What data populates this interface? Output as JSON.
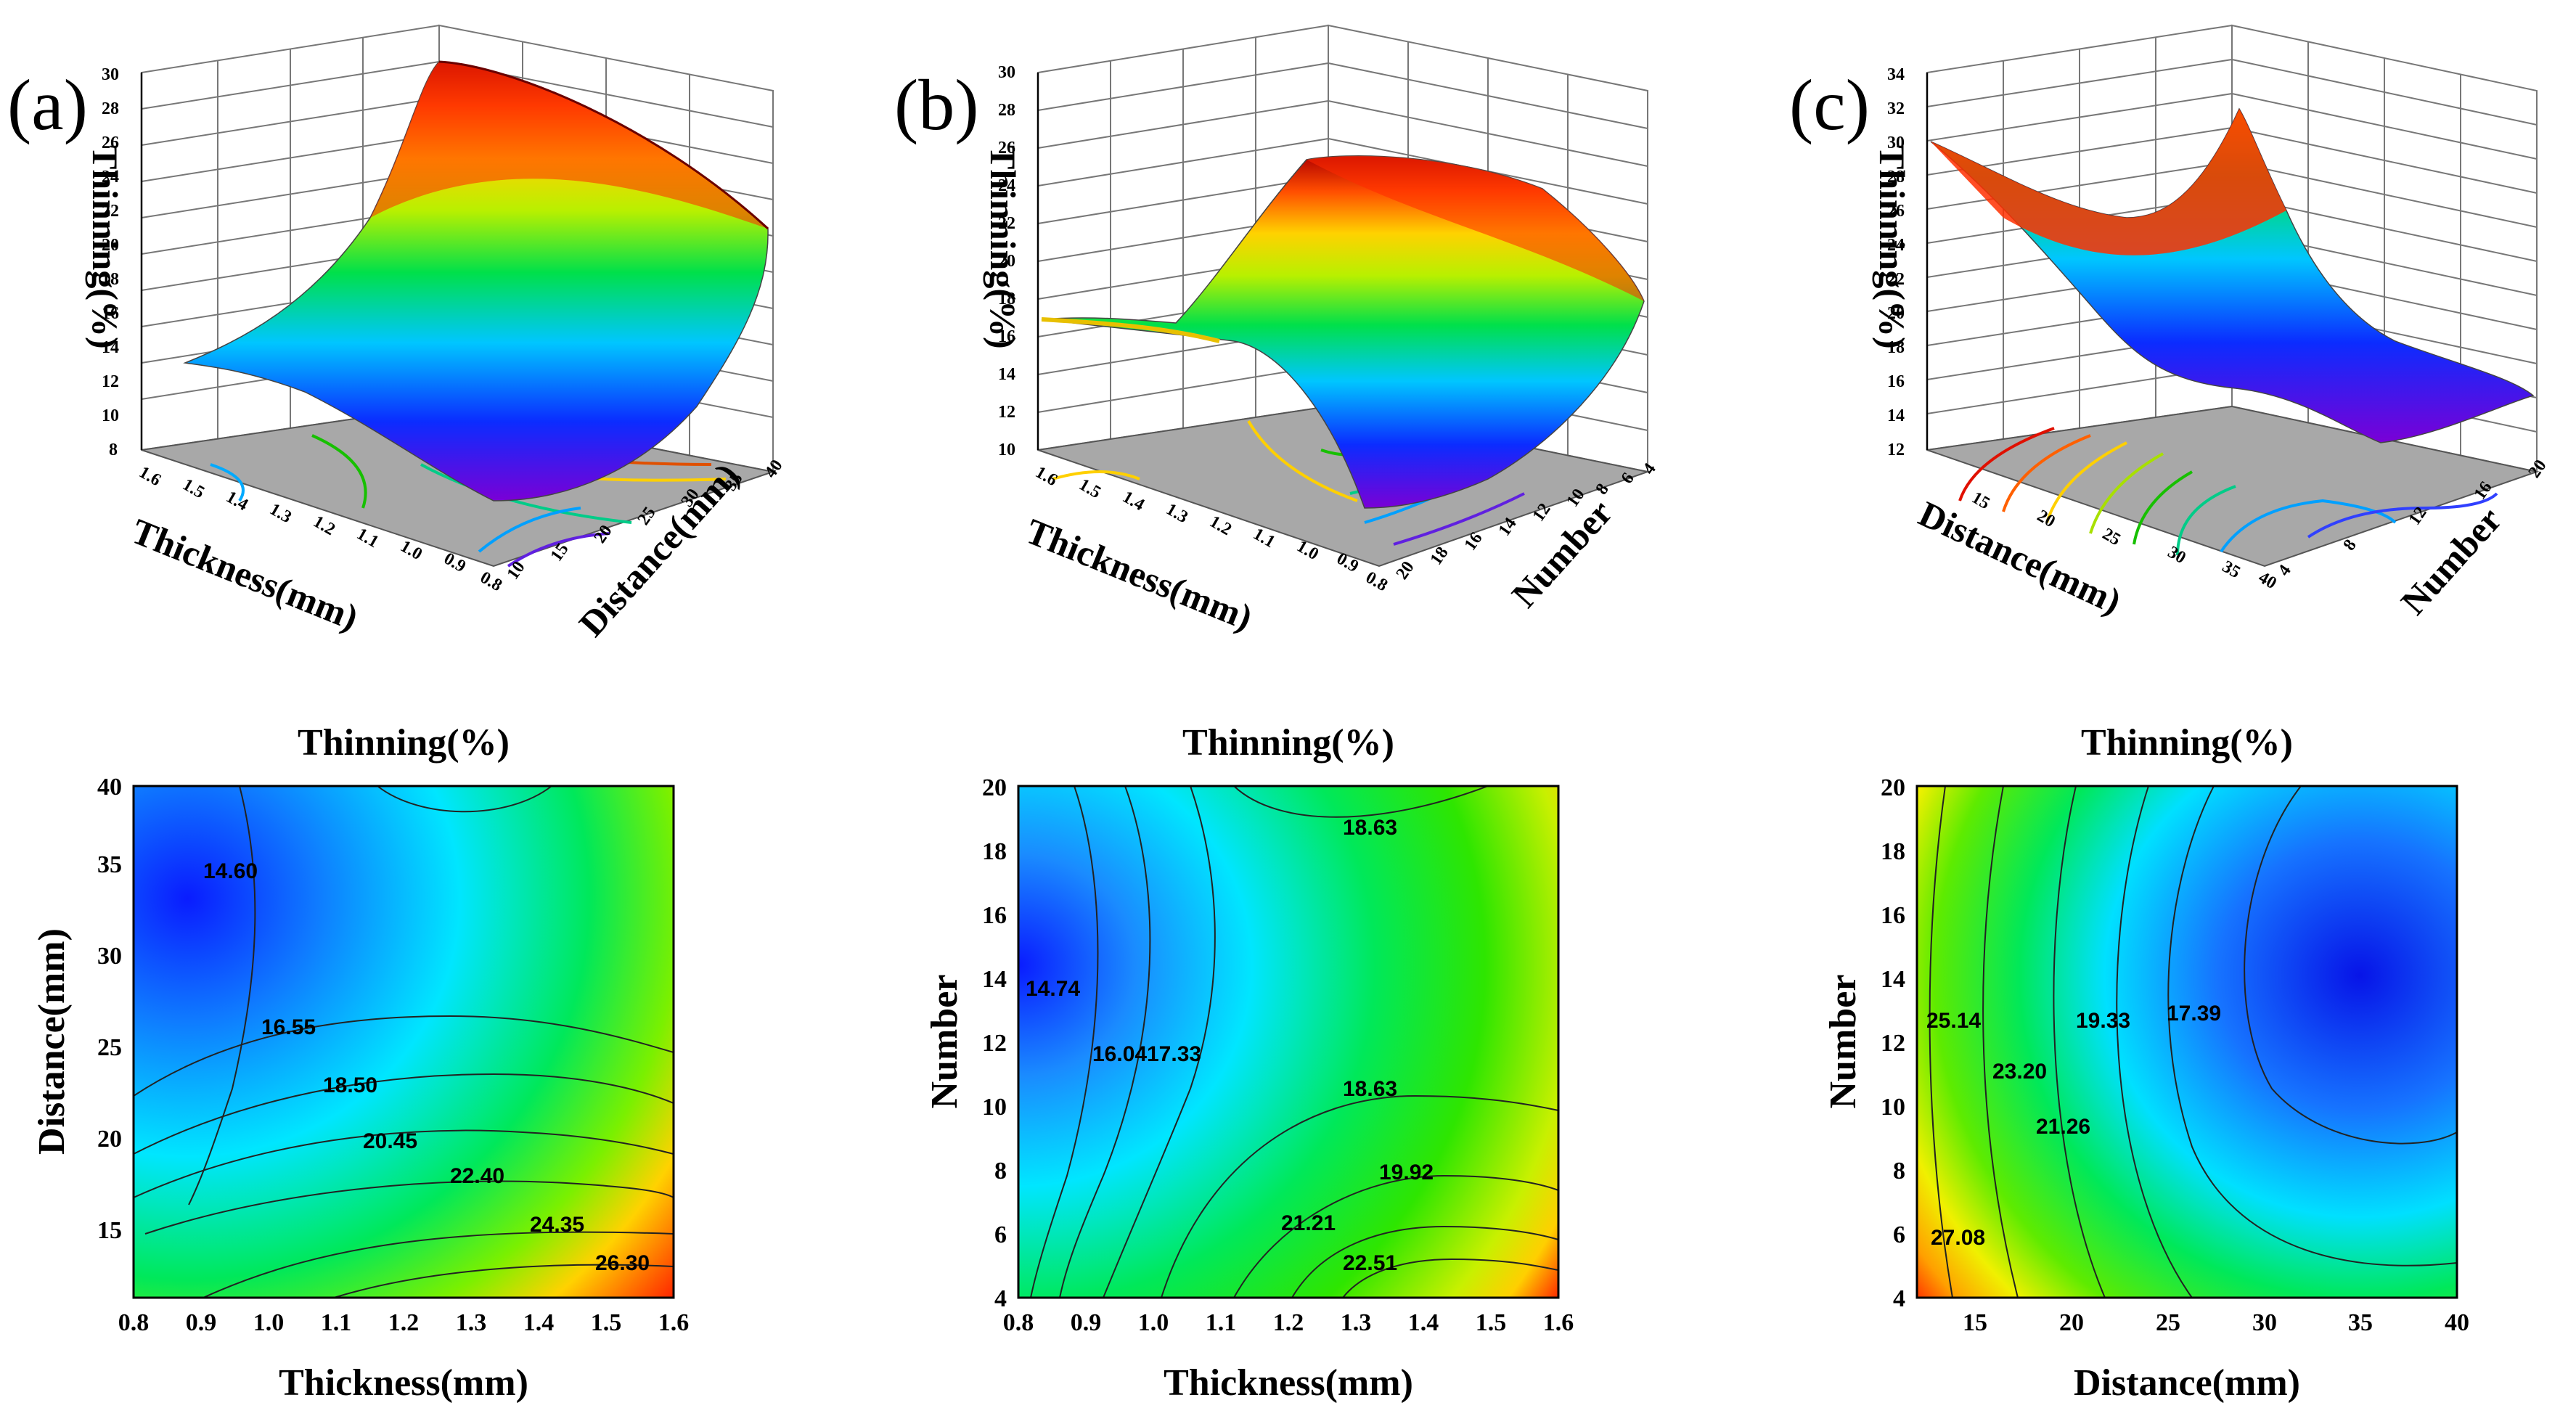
{
  "panel_labels": [
    "(a)",
    "(b)",
    "(c)"
  ],
  "chart_data": [
    {
      "type": "surface3d",
      "panel": "(a)",
      "zlabel": "Thinning(%)",
      "xlabel": "Thickness(mm)",
      "ylabel": "Distance(mm)",
      "zticks": [
        "8",
        "10",
        "12",
        "14",
        "16",
        "18",
        "20",
        "22",
        "24",
        "26",
        "28",
        "30"
      ],
      "xticks": [
        "1.6",
        "1.5",
        "1.4",
        "1.3",
        "1.2",
        "1.1",
        "1.0",
        "0.9",
        "0.8"
      ],
      "yticks": [
        "10",
        "15",
        "20",
        "25",
        "30",
        "35",
        "40"
      ],
      "zlim": [
        8,
        30
      ]
    },
    {
      "type": "surface3d",
      "panel": "(b)",
      "zlabel": "Thinning(%)",
      "xlabel": "Thickness(mm)",
      "ylabel": "Number",
      "zticks": [
        "10",
        "12",
        "14",
        "16",
        "18",
        "20",
        "22",
        "24",
        "26",
        "28",
        "30"
      ],
      "xticks": [
        "1.6",
        "1.5",
        "1.4",
        "1.3",
        "1.2",
        "1.1",
        "1.0",
        "0.9",
        "0.8"
      ],
      "yticks": [
        "4",
        "6",
        "8",
        "10",
        "12",
        "14",
        "16",
        "18",
        "20"
      ],
      "zlim": [
        10,
        30
      ]
    },
    {
      "type": "surface3d",
      "panel": "(c)",
      "zlabel": "Thinning(%)",
      "xlabel": "Distance(mm)",
      "ylabel": "Number",
      "zticks": [
        "12",
        "14",
        "16",
        "18",
        "20",
        "22",
        "24",
        "26",
        "28",
        "30",
        "32",
        "34"
      ],
      "xticks": [
        "15",
        "20",
        "25",
        "30",
        "35",
        "40"
      ],
      "yticks": [
        "4",
        "8",
        "12",
        "16",
        "20"
      ],
      "zlim": [
        12,
        34
      ]
    },
    {
      "type": "contour",
      "title": "Thinning(%)",
      "xlabel": "Thickness(mm)",
      "ylabel": "Distance(mm)",
      "xlim": [
        0.8,
        1.6
      ],
      "ylim": [
        12,
        40
      ],
      "xticks": [
        "0.8",
        "0.9",
        "1.0",
        "1.1",
        "1.2",
        "1.3",
        "1.4",
        "1.5",
        "1.6"
      ],
      "yticks": [
        "15",
        "20",
        "25",
        "30",
        "35",
        "40"
      ],
      "contour_levels": [
        "14.60",
        "16.55",
        "18.50",
        "20.45",
        "22.40",
        "24.35",
        "26.30"
      ]
    },
    {
      "type": "contour",
      "title": "Thinning(%)",
      "xlabel": "Thickness(mm)",
      "ylabel": "Number",
      "xlim": [
        0.8,
        1.6
      ],
      "ylim": [
        4,
        20
      ],
      "xticks": [
        "0.8",
        "0.9",
        "1.0",
        "1.1",
        "1.2",
        "1.3",
        "1.4",
        "1.5",
        "1.6"
      ],
      "yticks": [
        "4",
        "6",
        "8",
        "10",
        "12",
        "14",
        "16",
        "18",
        "20"
      ],
      "contour_levels": [
        "14.74",
        "16.04",
        "17.33",
        "18.63",
        "18.63",
        "19.92",
        "21.21",
        "22.51"
      ]
    },
    {
      "type": "contour",
      "title": "Thinning(%)",
      "xlabel": "Distance(mm)",
      "ylabel": "Number",
      "xlim": [
        12,
        40
      ],
      "ylim": [
        4,
        20
      ],
      "xticks": [
        "15",
        "20",
        "25",
        "30",
        "35",
        "40"
      ],
      "yticks": [
        "4",
        "6",
        "8",
        "10",
        "12",
        "14",
        "16",
        "18",
        "20"
      ],
      "contour_levels": [
        "25.14",
        "23.20",
        "19.33",
        "17.39",
        "21.26",
        "27.08"
      ]
    }
  ]
}
